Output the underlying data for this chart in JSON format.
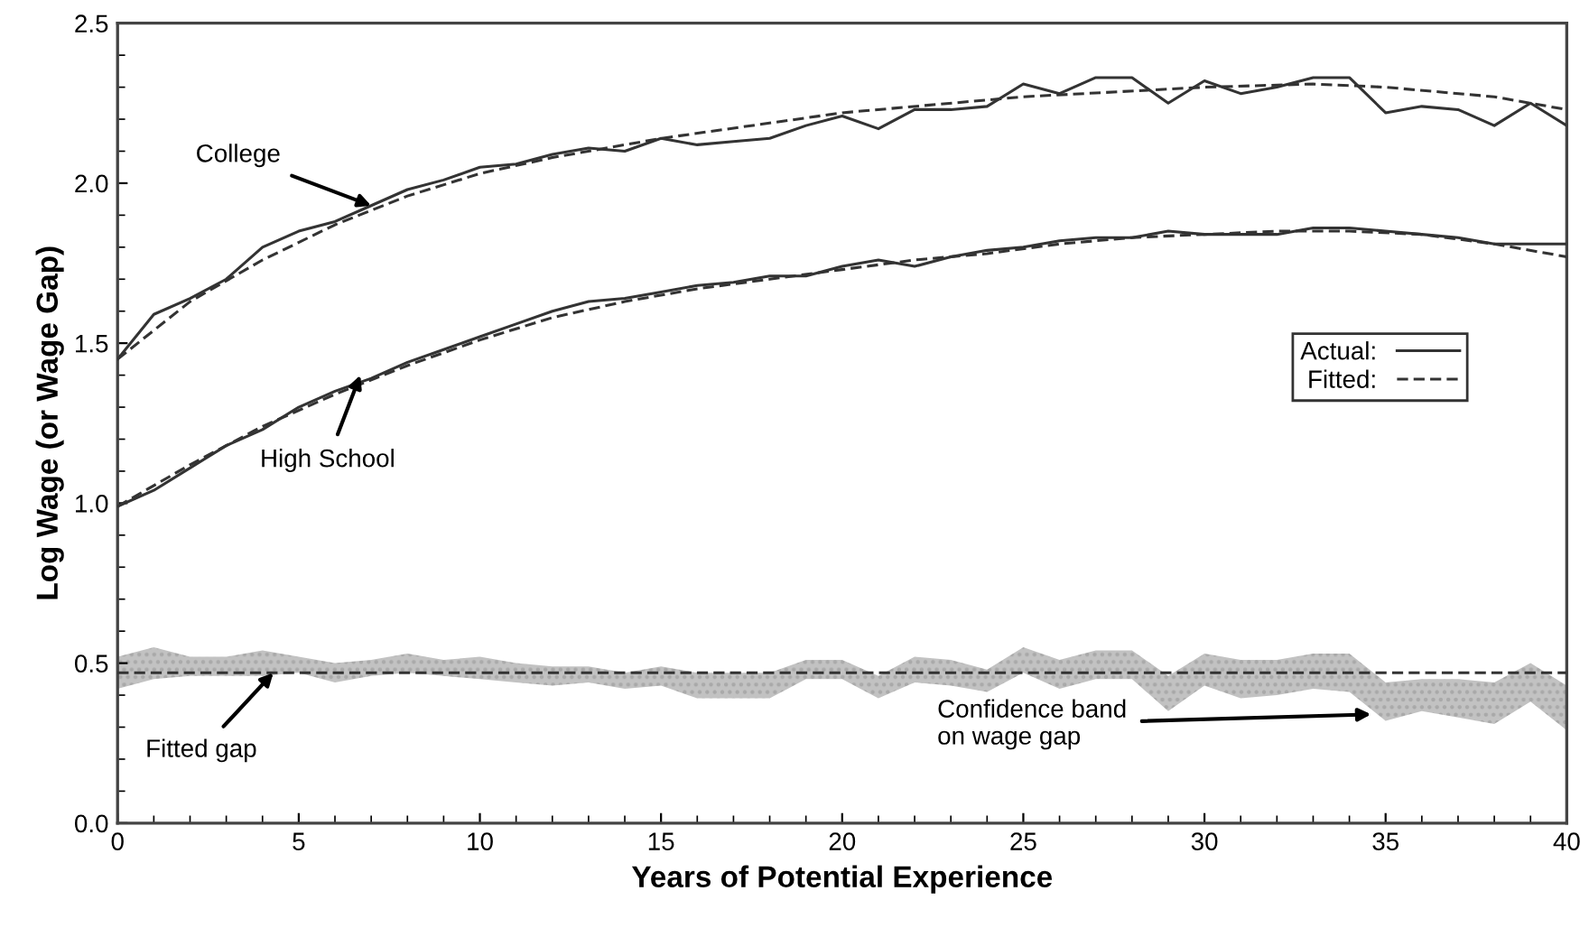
{
  "chart_data": {
    "type": "line",
    "xlabel": "Years of Potential Experience",
    "ylabel": "Log Wage (or Wage Gap)",
    "x": [
      0,
      1,
      2,
      3,
      4,
      5,
      6,
      7,
      8,
      9,
      10,
      11,
      12,
      13,
      14,
      15,
      16,
      17,
      18,
      19,
      20,
      21,
      22,
      23,
      24,
      25,
      26,
      27,
      28,
      29,
      30,
      31,
      32,
      33,
      34,
      35,
      36,
      37,
      38,
      39,
      40
    ],
    "series": [
      {
        "name": "Actual:",
        "color": "#333333",
        "line_style": "solid",
        "values": [
          1.45,
          1.59,
          1.64,
          1.7,
          1.8,
          1.85,
          1.88,
          1.93,
          1.98,
          2.01,
          2.05,
          2.06,
          2.09,
          2.11,
          2.1,
          2.14,
          2.12,
          2.13,
          2.14,
          2.18,
          2.21,
          2.17,
          2.23,
          2.23,
          2.24,
          2.31,
          2.28,
          2.33,
          2.33,
          2.25,
          2.32,
          2.28,
          2.3,
          2.33,
          2.33,
          2.22,
          2.24,
          2.23,
          2.18,
          2.25,
          2.18
        ]
      },
      {
        "name": "Fitted:",
        "color": "#333333",
        "line_style": "dashed",
        "x": [
          0,
          2,
          4,
          6,
          8,
          10,
          12,
          15,
          20,
          25,
          30,
          33,
          35,
          38,
          40
        ],
        "values": [
          1.45,
          1.63,
          1.76,
          1.87,
          1.96,
          2.03,
          2.08,
          2.14,
          2.22,
          2.27,
          2.3,
          2.31,
          2.3,
          2.27,
          2.23
        ]
      },
      {
        "color": "#333333",
        "line_style": "solid",
        "values": [
          0.99,
          1.04,
          1.11,
          1.18,
          1.23,
          1.3,
          1.35,
          1.39,
          1.44,
          1.48,
          1.52,
          1.56,
          1.6,
          1.63,
          1.64,
          1.66,
          1.68,
          1.69,
          1.71,
          1.71,
          1.74,
          1.76,
          1.74,
          1.77,
          1.79,
          1.8,
          1.82,
          1.83,
          1.83,
          1.85,
          1.84,
          1.84,
          1.84,
          1.86,
          1.86,
          1.85,
          1.84,
          1.83,
          1.81,
          1.81,
          1.81
        ]
      },
      {
        "color": "#333333",
        "line_style": "dashed",
        "x": [
          0,
          2,
          4,
          6,
          8,
          10,
          12,
          14,
          16,
          18,
          20,
          22,
          24,
          26,
          28,
          30,
          32,
          34,
          36,
          38,
          40
        ],
        "values": [
          0.99,
          1.12,
          1.24,
          1.34,
          1.43,
          1.51,
          1.58,
          1.63,
          1.67,
          1.7,
          1.73,
          1.76,
          1.78,
          1.81,
          1.83,
          1.84,
          1.85,
          1.85,
          1.84,
          1.81,
          1.77
        ]
      },
      {
        "color": "#333333",
        "line_style": "dashed",
        "values": [
          0.47,
          0.47,
          0.47,
          0.47,
          0.47,
          0.47,
          0.47,
          0.47,
          0.47,
          0.47,
          0.47,
          0.47,
          0.47,
          0.47,
          0.47,
          0.47,
          0.47,
          0.47,
          0.47,
          0.47,
          0.47,
          0.47,
          0.47,
          0.47,
          0.47,
          0.47,
          0.47,
          0.47,
          0.47,
          0.47,
          0.47,
          0.47,
          0.47,
          0.47,
          0.47,
          0.47,
          0.47,
          0.47,
          0.47,
          0.47,
          0.47
        ],
        "upper": [
          0.52,
          0.55,
          0.52,
          0.52,
          0.54,
          0.52,
          0.5,
          0.51,
          0.53,
          0.51,
          0.52,
          0.5,
          0.49,
          0.49,
          0.47,
          0.49,
          0.47,
          0.47,
          0.47,
          0.51,
          0.51,
          0.46,
          0.52,
          0.51,
          0.48,
          0.55,
          0.51,
          0.54,
          0.54,
          0.46,
          0.53,
          0.51,
          0.51,
          0.53,
          0.53,
          0.44,
          0.45,
          0.45,
          0.44,
          0.5,
          0.43
        ],
        "lower": [
          0.42,
          0.45,
          0.46,
          0.46,
          0.46,
          0.47,
          0.44,
          0.46,
          0.47,
          0.46,
          0.45,
          0.44,
          0.43,
          0.44,
          0.42,
          0.43,
          0.39,
          0.39,
          0.39,
          0.45,
          0.45,
          0.39,
          0.44,
          0.43,
          0.41,
          0.47,
          0.42,
          0.45,
          0.45,
          0.35,
          0.43,
          0.39,
          0.4,
          0.42,
          0.41,
          0.32,
          0.35,
          0.33,
          0.31,
          0.38,
          0.29
        ]
      }
    ],
    "xlim": [
      0,
      40
    ],
    "xticks": [
      0,
      5,
      10,
      15,
      20,
      25,
      30,
      35,
      40
    ],
    "ylim": [
      0,
      2.5
    ],
    "yticks": [
      {
        "value": 0,
        "label": "0.0"
      },
      {
        "value": 0.5,
        "label": "0.5"
      },
      {
        "value": 1,
        "label": "1.0"
      },
      {
        "value": 1.5,
        "label": "1.5"
      },
      {
        "value": 2,
        "label": "2.0"
      },
      {
        "value": 2.5,
        "label": "2.5"
      }
    ],
    "grid": false,
    "legend": "right",
    "marker": "none",
    "annotations": [
      {
        "text": "College",
        "x": 7,
        "y": 1.93
      },
      {
        "text": "High School",
        "x": 6.7,
        "y": 1.4
      },
      {
        "text": "Fitted gap",
        "x": 4.3,
        "y": 0.47
      },
      {
        "text": "Confidence band\non wage gap",
        "x": 34.6,
        "y": 0.34
      }
    ]
  }
}
